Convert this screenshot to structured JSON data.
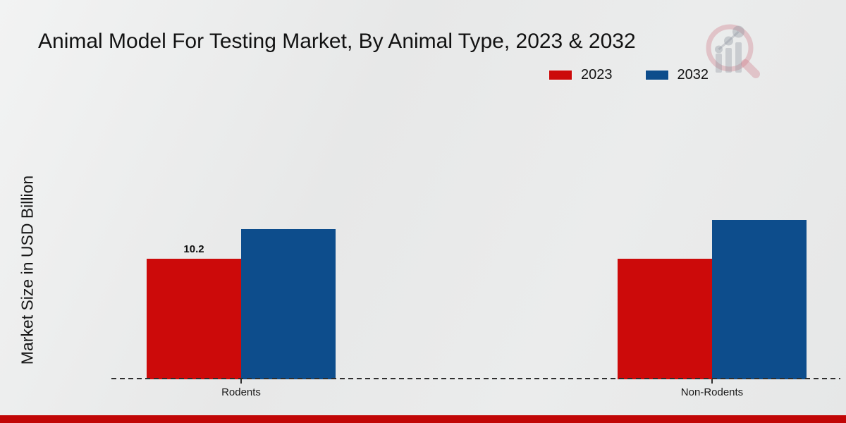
{
  "chart_data": {
    "type": "bar",
    "title": "Animal Model For Testing Market, By Animal Type, 2023 & 2032",
    "categories": [
      "Rodents",
      "Non-Rodents"
    ],
    "series": [
      {
        "name": "2023",
        "color": "#cc0a0a",
        "values": [
          10.2,
          10.2
        ],
        "labels": [
          "10.2",
          ""
        ]
      },
      {
        "name": "2032",
        "color": "#0d4d8c",
        "values": [
          12.7,
          13.5
        ],
        "labels": [
          "",
          ""
        ]
      }
    ],
    "xlabel": "",
    "ylabel": "Market Size in USD Billion",
    "ylim": [
      0,
      23
    ],
    "grid": false,
    "legend_position": "top-right",
    "y_axis_ticks_visible": false,
    "baseline_style": "dashed"
  },
  "colors": {
    "accent_red": "#cc0a0a",
    "accent_blue": "#0d4d8c",
    "bottom_strip": "#c10606",
    "background": "#e9eaea",
    "text": "#1a1a1a"
  },
  "watermark": {
    "icon_name": "magnifier-bar-chart-logo"
  }
}
